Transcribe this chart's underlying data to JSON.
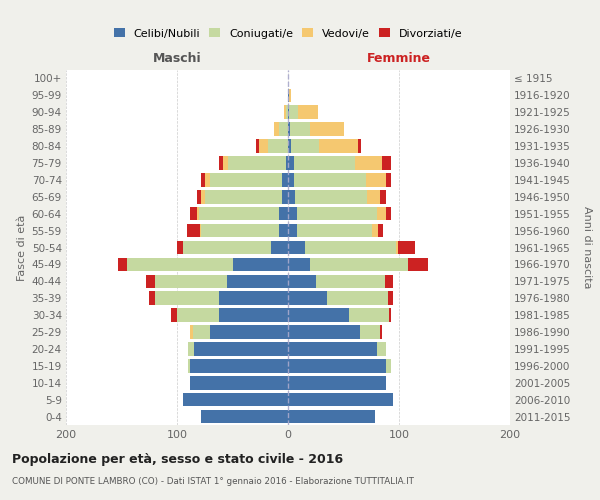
{
  "age_groups": [
    "0-4",
    "5-9",
    "10-14",
    "15-19",
    "20-24",
    "25-29",
    "30-34",
    "35-39",
    "40-44",
    "45-49",
    "50-54",
    "55-59",
    "60-64",
    "65-69",
    "70-74",
    "75-79",
    "80-84",
    "85-89",
    "90-94",
    "95-99",
    "100+"
  ],
  "birth_years": [
    "2011-2015",
    "2006-2010",
    "2001-2005",
    "1996-2000",
    "1991-1995",
    "1986-1990",
    "1981-1985",
    "1976-1980",
    "1971-1975",
    "1966-1970",
    "1961-1965",
    "1956-1960",
    "1951-1955",
    "1946-1950",
    "1941-1945",
    "1936-1940",
    "1931-1935",
    "1926-1930",
    "1921-1925",
    "1916-1920",
    "≤ 1915"
  ],
  "male_celibi": [
    78,
    95,
    88,
    88,
    85,
    70,
    62,
    62,
    55,
    50,
    15,
    8,
    8,
    5,
    5,
    2,
    0,
    0,
    0,
    0,
    0
  ],
  "male_coniugati": [
    0,
    0,
    0,
    2,
    5,
    16,
    38,
    58,
    65,
    95,
    80,
    70,
    72,
    70,
    65,
    52,
    18,
    8,
    2,
    0,
    0
  ],
  "male_vedovi": [
    0,
    0,
    0,
    0,
    0,
    2,
    0,
    0,
    0,
    0,
    0,
    1,
    2,
    3,
    5,
    5,
    8,
    5,
    2,
    0,
    0
  ],
  "male_divorziati": [
    0,
    0,
    0,
    0,
    0,
    0,
    5,
    5,
    8,
    8,
    5,
    12,
    6,
    4,
    3,
    3,
    3,
    0,
    0,
    0,
    0
  ],
  "fem_nubili": [
    78,
    95,
    88,
    88,
    80,
    65,
    55,
    35,
    25,
    20,
    15,
    8,
    8,
    6,
    5,
    5,
    3,
    2,
    1,
    1,
    0
  ],
  "fem_coniugate": [
    0,
    0,
    0,
    5,
    8,
    18,
    36,
    55,
    62,
    88,
    82,
    68,
    72,
    65,
    65,
    55,
    25,
    18,
    8,
    0,
    0
  ],
  "fem_vedove": [
    0,
    0,
    0,
    0,
    0,
    0,
    0,
    0,
    0,
    0,
    2,
    5,
    8,
    12,
    18,
    25,
    35,
    30,
    18,
    2,
    0
  ],
  "fem_divorziate": [
    0,
    0,
    0,
    0,
    0,
    2,
    2,
    5,
    8,
    18,
    15,
    5,
    5,
    5,
    5,
    8,
    3,
    0,
    0,
    0,
    0
  ],
  "colors": {
    "celibi": "#4472a8",
    "coniugati": "#c5d9a0",
    "vedovi": "#f5c870",
    "divorziati": "#cc2222"
  },
  "title": "Popolazione per età, sesso e stato civile - 2016",
  "subtitle": "COMUNE DI PONTE LAMBRO (CO) - Dati ISTAT 1° gennaio 2016 - Elaborazione TUTTITALIA.IT",
  "label_maschi": "Maschi",
  "label_femmine": "Femmine",
  "ylabel_left": "Fasce di età",
  "ylabel_right": "Anni di nascita",
  "xlim": 200,
  "legend_labels": [
    "Celibi/Nubili",
    "Coniugati/e",
    "Vedovi/e",
    "Divorziati/e"
  ],
  "bg_color": "#f0f0eb",
  "plot_bg_color": "#ffffff"
}
